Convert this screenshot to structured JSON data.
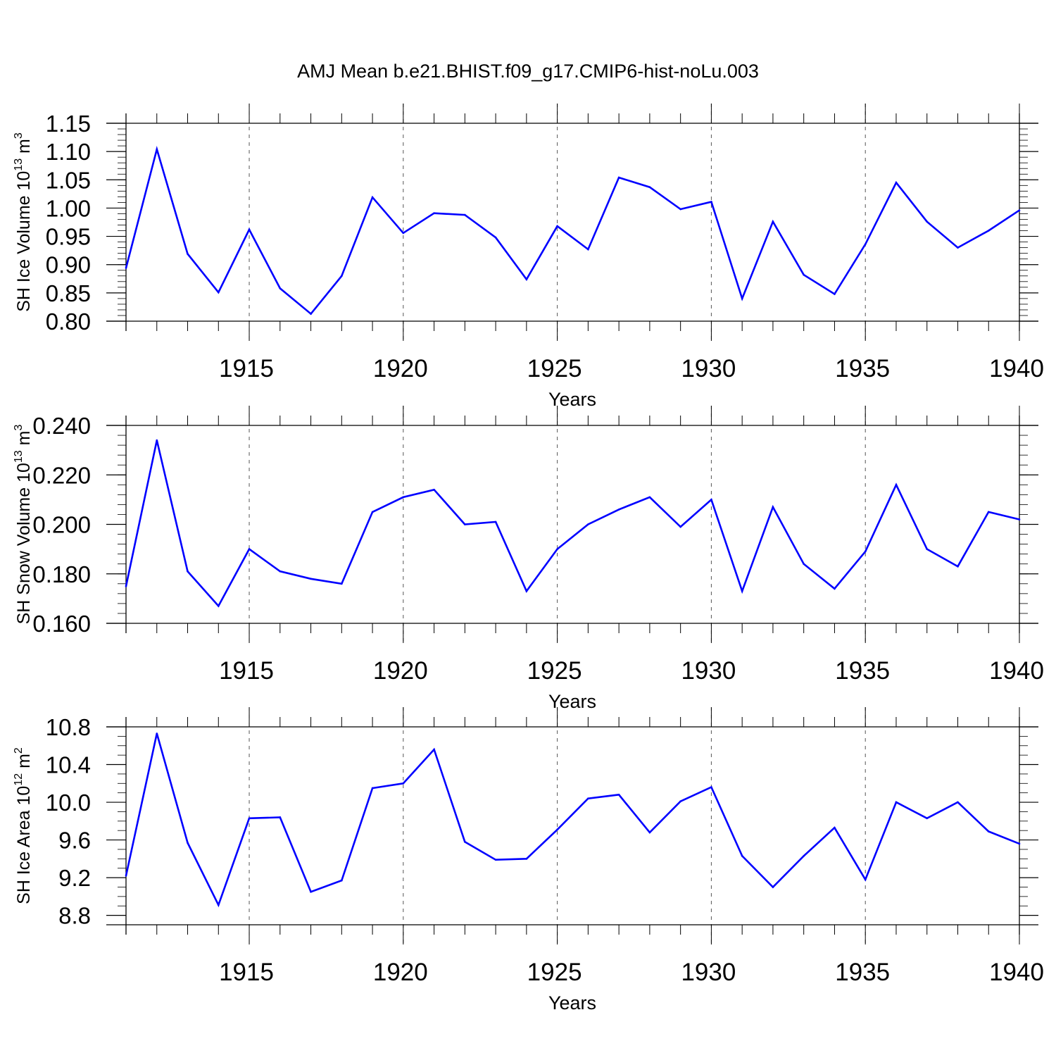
{
  "title": "AMJ Mean b.e21.BHIST.f09_g17.CMIP6-hist-noLu.003",
  "line_color": "#0000ff",
  "chart_data": [
    {
      "type": "line",
      "ylabel": "SH Ice Volume 10",
      "ylabel_exp": "13",
      "ylabel_unit": "m",
      "ylabel_unit_exp": "3",
      "xlabel": "Years",
      "xlim": [
        1911,
        1940
      ],
      "ylim": [
        0.8,
        1.15
      ],
      "xticks": [
        1915,
        1920,
        1925,
        1930,
        1935,
        1940
      ],
      "yticks": [
        "0.80",
        "0.85",
        "0.90",
        "0.95",
        "1.00",
        "1.05",
        "1.10",
        "1.15"
      ],
      "ytick_values": [
        0.8,
        0.85,
        0.9,
        0.95,
        1.0,
        1.05,
        1.1,
        1.15
      ],
      "y_minor_step": 0.01,
      "x": [
        1911,
        1912,
        1913,
        1914,
        1915,
        1916,
        1917,
        1918,
        1919,
        1920,
        1921,
        1922,
        1923,
        1924,
        1925,
        1926,
        1927,
        1928,
        1929,
        1930,
        1931,
        1932,
        1933,
        1934,
        1935,
        1936,
        1937,
        1938,
        1939,
        1940
      ],
      "values": [
        0.894,
        1.104,
        0.919,
        0.851,
        0.962,
        0.858,
        0.813,
        0.88,
        1.019,
        0.956,
        0.991,
        0.988,
        0.948,
        0.874,
        0.968,
        0.927,
        1.054,
        1.037,
        0.998,
        1.011,
        0.84,
        0.976,
        0.882,
        0.848,
        0.936,
        1.045,
        0.976,
        0.93,
        0.96,
        0.996
      ],
      "grid": "dashed vertical at major x ticks"
    },
    {
      "type": "line",
      "ylabel": "SH Snow Volume 10",
      "ylabel_exp": "13",
      "ylabel_unit": "m",
      "ylabel_unit_exp": "3",
      "xlabel": "Years",
      "xlim": [
        1911,
        1940
      ],
      "ylim": [
        0.16,
        0.24
      ],
      "xticks": [
        1915,
        1920,
        1925,
        1930,
        1935,
        1940
      ],
      "yticks": [
        "0.160",
        "0.180",
        "0.200",
        "0.220",
        "0.240"
      ],
      "ytick_values": [
        0.16,
        0.18,
        0.2,
        0.22,
        0.24
      ],
      "y_minor_step": 0.004,
      "x": [
        1911,
        1912,
        1913,
        1914,
        1915,
        1916,
        1917,
        1918,
        1919,
        1920,
        1921,
        1922,
        1923,
        1924,
        1925,
        1926,
        1927,
        1928,
        1929,
        1930,
        1931,
        1932,
        1933,
        1934,
        1935,
        1936,
        1937,
        1938,
        1939,
        1940
      ],
      "values": [
        0.175,
        0.234,
        0.181,
        0.167,
        0.19,
        0.181,
        0.178,
        0.176,
        0.205,
        0.211,
        0.214,
        0.2,
        0.201,
        0.173,
        0.19,
        0.2,
        0.206,
        0.211,
        0.199,
        0.21,
        0.173,
        0.207,
        0.184,
        0.174,
        0.189,
        0.216,
        0.19,
        0.183,
        0.205,
        0.202
      ],
      "grid": "dashed vertical at major x ticks"
    },
    {
      "type": "line",
      "ylabel": "SH Ice Area 10",
      "ylabel_exp": "12",
      "ylabel_unit": "m",
      "ylabel_unit_exp": "2",
      "xlabel": "Years",
      "xlim": [
        1911,
        1940
      ],
      "ylim": [
        8.7,
        10.8
      ],
      "xticks": [
        1915,
        1920,
        1925,
        1930,
        1935,
        1940
      ],
      "yticks": [
        "8.8",
        "9.2",
        "9.6",
        "10.0",
        "10.4",
        "10.8"
      ],
      "ytick_values": [
        8.8,
        9.2,
        9.6,
        10.0,
        10.4,
        10.8
      ],
      "y_minor_step": 0.1,
      "x": [
        1911,
        1912,
        1913,
        1914,
        1915,
        1916,
        1917,
        1918,
        1919,
        1920,
        1921,
        1922,
        1923,
        1924,
        1925,
        1926,
        1927,
        1928,
        1929,
        1930,
        1931,
        1932,
        1933,
        1934,
        1935,
        1936,
        1937,
        1938,
        1939,
        1940
      ],
      "values": [
        9.22,
        10.73,
        9.57,
        8.91,
        9.83,
        9.84,
        9.05,
        9.17,
        10.15,
        10.2,
        10.56,
        9.58,
        9.39,
        9.4,
        9.71,
        10.04,
        10.08,
        9.68,
        10.01,
        10.16,
        9.43,
        9.1,
        9.43,
        9.73,
        9.18,
        10.0,
        9.83,
        10.0,
        9.69,
        9.56
      ],
      "grid": "dashed vertical at major x ticks"
    }
  ]
}
